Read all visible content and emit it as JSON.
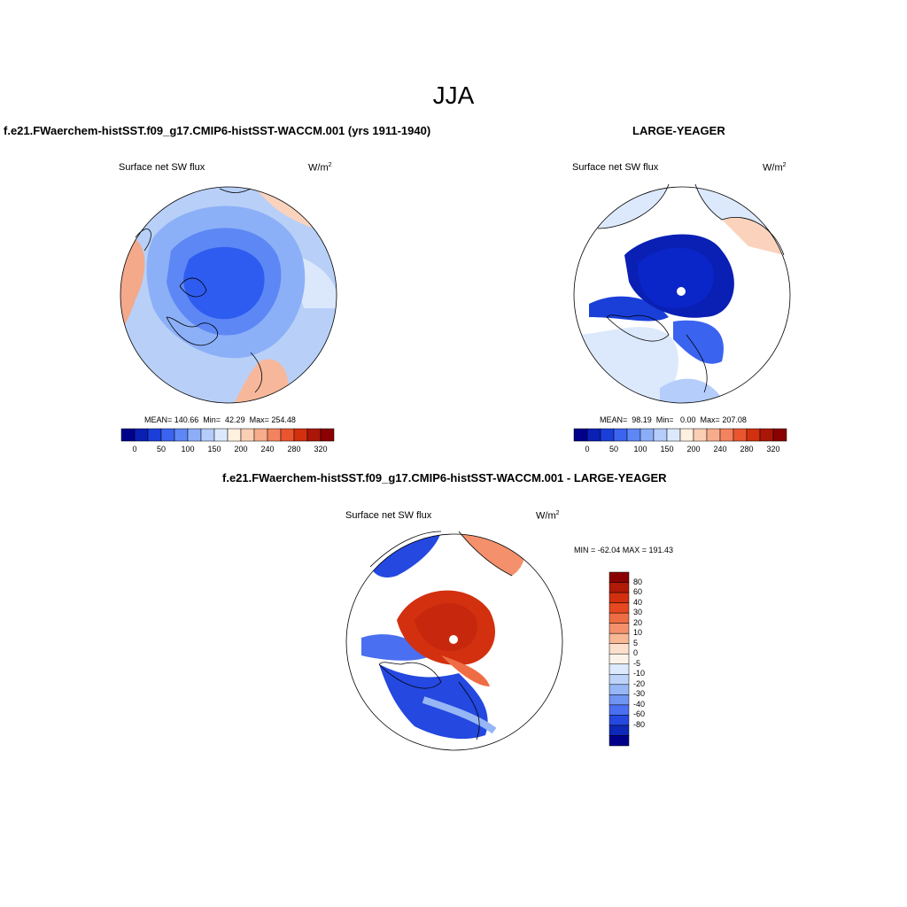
{
  "header": {
    "title": "JJA"
  },
  "panels": [
    {
      "title": "f.e21.FWaerchem-histSST.f09_g17.CMIP6-histSST-WACCM.001 (yrs 1911-1940)",
      "variable": "Surface net SW flux",
      "units": "W/m",
      "units_sup": "2",
      "stats": "MEAN= 140.66  Min=  42.29  Max= 254.48"
    },
    {
      "title": "LARGE-YEAGER",
      "variable": "Surface net SW flux",
      "units": "W/m",
      "units_sup": "2",
      "stats": "MEAN=  98.19  Min=   0.00  Max= 207.08"
    },
    {
      "title": "f.e21.FWaerchem-histSST.f09_g17.CMIP6-histSST-WACCM.001 - LARGE-YEAGER",
      "variable": "Surface net SW flux",
      "units": "W/m",
      "units_sup": "2",
      "stats": "MIN = -62.04 MAX = 191.43"
    }
  ],
  "colorbar_abs": {
    "ticks": [
      "0",
      "50",
      "100",
      "150",
      "200",
      "240",
      "280",
      "320"
    ],
    "colors": [
      "#00008b",
      "#0a1fb4",
      "#1a3fd9",
      "#3a63ef",
      "#5e86f5",
      "#8caef8",
      "#b4cdfa",
      "#dce9fc",
      "#fff0df",
      "#fbcfb4",
      "#f7ac8c",
      "#f2835e",
      "#ea5530",
      "#d2300f",
      "#aa1608",
      "#8b0000"
    ]
  },
  "colorbar_diff": {
    "ticks": [
      "80",
      "60",
      "40",
      "30",
      "20",
      "10",
      "5",
      "0",
      "-5",
      "-10",
      "-20",
      "-30",
      "-40",
      "-60",
      "-80"
    ],
    "colors": [
      "#8b0000",
      "#b01a07",
      "#d2300f",
      "#e64820",
      "#ef6d45",
      "#f4916c",
      "#f8b896",
      "#fde0cb",
      "#fbf3ea",
      "#dde9fc",
      "#bdd3f9",
      "#96b6f6",
      "#6f94f2",
      "#4a6ff0",
      "#2448e0",
      "#0e28b9",
      "#00008b"
    ]
  }
}
